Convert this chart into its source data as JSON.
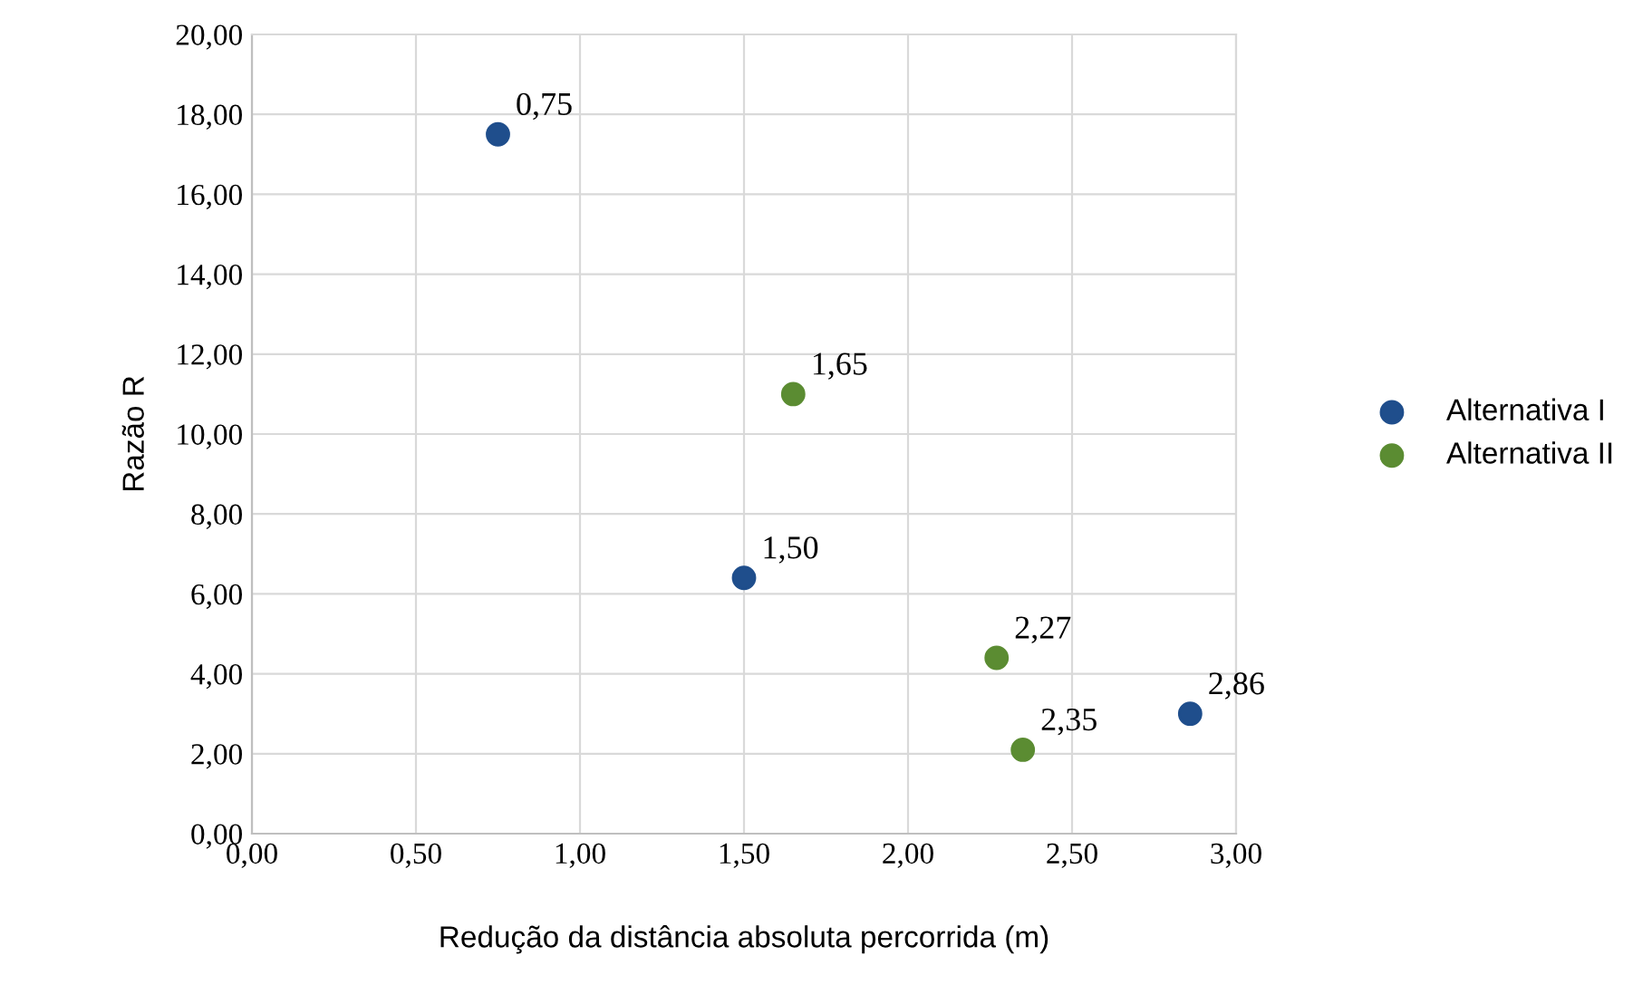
{
  "chart_data": {
    "type": "scatter",
    "xlabel": "Redução da distância absoluta percorrida (m)",
    "ylabel": "Razão R",
    "series": [
      {
        "name": "Alternativa I",
        "color": "#1f4e8c",
        "x": [
          0.75,
          1.5,
          2.86
        ],
        "values": [
          17.5,
          6.4,
          3.0
        ]
      },
      {
        "name": "Alternativa II",
        "color": "#5b8c32",
        "x": [
          1.65,
          2.27,
          2.35
        ],
        "values": [
          11.0,
          4.4,
          2.1
        ]
      }
    ],
    "annotations": [
      {
        "text": "0,75",
        "x": 0.75,
        "y": 17.5
      },
      {
        "text": "1,50",
        "x": 1.5,
        "y": 6.4
      },
      {
        "text": "2,86",
        "x": 2.86,
        "y": 3.0
      },
      {
        "text": "1,65",
        "x": 1.65,
        "y": 11.0
      },
      {
        "text": "2,27",
        "x": 2.27,
        "y": 4.4
      },
      {
        "text": "2,35",
        "x": 2.35,
        "y": 2.1
      }
    ],
    "xlim": [
      0,
      3
    ],
    "ylim": [
      0,
      20
    ],
    "xticks": [
      {
        "value": 0,
        "label": "0,00"
      },
      {
        "value": 0.5,
        "label": "0,50"
      },
      {
        "value": 1,
        "label": "1,00"
      },
      {
        "value": 1.5,
        "label": "1,50"
      },
      {
        "value": 2,
        "label": "2,00"
      },
      {
        "value": 2.5,
        "label": "2,50"
      },
      {
        "value": 3,
        "label": "3,00"
      }
    ],
    "yticks": [
      {
        "value": 0,
        "label": "0,00"
      },
      {
        "value": 2,
        "label": "2,00"
      },
      {
        "value": 4,
        "label": "4,00"
      },
      {
        "value": 6,
        "label": "6,00"
      },
      {
        "value": 8,
        "label": "8,00"
      },
      {
        "value": 10,
        "label": "10,00"
      },
      {
        "value": 12,
        "label": "12,00"
      },
      {
        "value": 14,
        "label": "14,00"
      },
      {
        "value": 16,
        "label": "16,00"
      },
      {
        "value": 18,
        "label": "18,00"
      },
      {
        "value": 20,
        "label": "20,00"
      }
    ],
    "grid": true,
    "legend": "right",
    "marker": "circle"
  }
}
